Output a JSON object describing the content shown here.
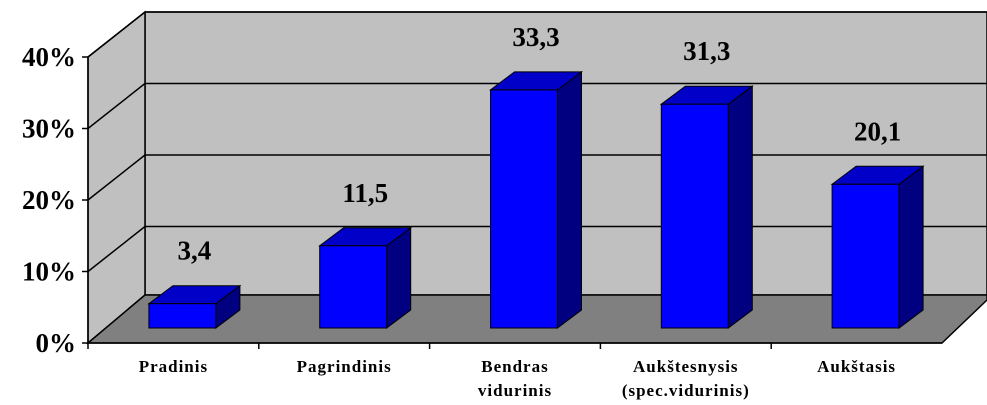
{
  "chart_data": {
    "type": "bar3d",
    "categories": [
      "Pradinis",
      "Pagrindinis",
      "Bendras\nvidurinis",
      "Aukštesnysis\n(spec.vidurinis)",
      "Aukštasis"
    ],
    "values": [
      3.4,
      11.5,
      33.3,
      31.3,
      20.1
    ],
    "value_labels": [
      "3,4",
      "11,5",
      "33,3",
      "31,3",
      "20,1"
    ],
    "color": "#0000ff",
    "ylim": [
      0,
      40
    ],
    "yticks": [
      {
        "value": 0,
        "label": "0%"
      },
      {
        "value": 10,
        "label": "10%"
      },
      {
        "value": 20,
        "label": "20%"
      },
      {
        "value": 30,
        "label": "30%"
      },
      {
        "value": 40,
        "label": "40%"
      }
    ],
    "grid": true
  }
}
